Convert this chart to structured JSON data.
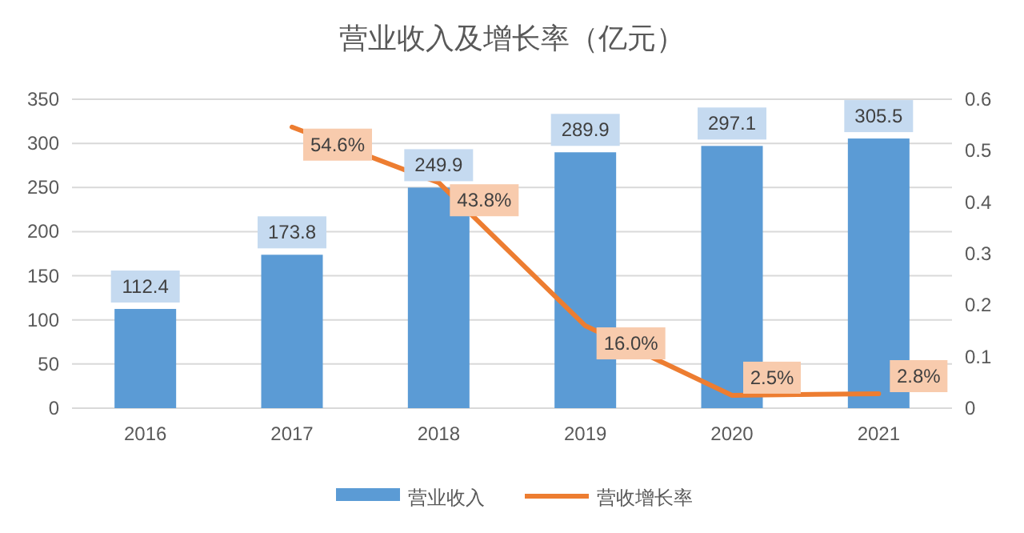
{
  "chart_data": {
    "type": "bar",
    "title": "营业收入及增长率（亿元）",
    "categories": [
      "2016",
      "2017",
      "2018",
      "2019",
      "2020",
      "2021"
    ],
    "series": [
      {
        "name": "营业收入",
        "type": "bar",
        "color": "#5b9bd5",
        "values": [
          112.4,
          173.8,
          249.9,
          289.9,
          297.1,
          305.5
        ],
        "value_labels": [
          "112.4",
          "173.8",
          "249.9",
          "289.9",
          "297.1",
          "305.5"
        ]
      },
      {
        "name": "营收增长率",
        "type": "line",
        "axis": "y2",
        "color": "#ed7d31",
        "values": [
          null,
          0.546,
          0.438,
          0.16,
          0.025,
          0.028
        ],
        "value_labels": [
          null,
          "54.6%",
          "43.8%",
          "16.0%",
          "2.5%",
          "2.8%"
        ]
      }
    ],
    "ylim": [
      0,
      350
    ],
    "yticks": [
      0,
      50,
      100,
      150,
      200,
      250,
      300,
      350
    ],
    "y2lim": [
      0,
      0.6
    ],
    "y2ticks": [
      0,
      0.1,
      0.2,
      0.3,
      0.4,
      0.5,
      0.6
    ],
    "grid": "y",
    "legend": "bottom",
    "marker": "none",
    "line_style": "solid"
  }
}
